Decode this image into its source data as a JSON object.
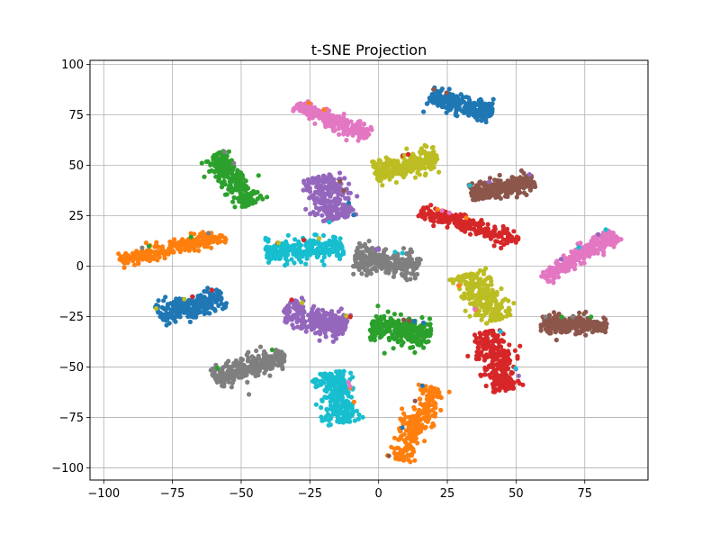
{
  "chart_data": {
    "type": "scatter",
    "title": "t-SNE Projection",
    "xlabel": "",
    "ylabel": "",
    "xlim": [
      -105,
      98
    ],
    "ylim": [
      -106,
      102
    ],
    "x_ticks": [
      -100,
      -75,
      -50,
      -25,
      0,
      25,
      50,
      75
    ],
    "y_ticks": [
      -100,
      -75,
      -50,
      -25,
      0,
      25,
      50,
      75,
      100
    ],
    "x_tick_labels": [
      "−100",
      "−75",
      "−50",
      "−25",
      "0",
      "25",
      "50",
      "75"
    ],
    "y_tick_labels": [
      "−100",
      "−75",
      "−50",
      "−25",
      "0",
      "25",
      "50",
      "75",
      "100"
    ],
    "grid": true,
    "legend": "none",
    "colors": {
      "blue": "#1f77b4",
      "orange": "#ff7f0e",
      "green": "#2ca02c",
      "red": "#d62728",
      "purple": "#9467bd",
      "brown": "#8c564b",
      "pink": "#e377c2",
      "gray": "#7f7f7f",
      "olive": "#bcbd22",
      "cyan": "#17becf"
    },
    "clusters": [
      {
        "color": "blue",
        "center": [
          30,
          80
        ],
        "axis": [
          1.0,
          -0.35
        ],
        "length": 24,
        "width": 7
      },
      {
        "color": "blue",
        "center": [
          -68,
          -20
        ],
        "axis": [
          1.0,
          0.45
        ],
        "length": 25,
        "width": 8
      },
      {
        "color": "pink",
        "center": [
          -17,
          72
        ],
        "axis": [
          1.0,
          -0.6
        ],
        "length": 30,
        "width": 6
      },
      {
        "color": "pink",
        "center": [
          73,
          5
        ],
        "axis": [
          1.0,
          0.9
        ],
        "length": 34,
        "width": 6
      },
      {
        "color": "green",
        "center": [
          -53,
          43
        ],
        "axis": [
          0.6,
          -1.0
        ],
        "length": 28,
        "width": 8
      },
      {
        "color": "green",
        "center": [
          8,
          -32
        ],
        "axis": [
          1.0,
          -0.2
        ],
        "length": 22,
        "width": 10
      },
      {
        "color": "olive",
        "center": [
          10,
          50
        ],
        "axis": [
          1.0,
          0.3
        ],
        "length": 24,
        "width": 9
      },
      {
        "color": "olive",
        "center": [
          38,
          -15
        ],
        "axis": [
          -0.5,
          1.0
        ],
        "length": 26,
        "width": 10
      },
      {
        "color": "brown",
        "center": [
          45,
          39
        ],
        "axis": [
          1.0,
          0.25
        ],
        "length": 24,
        "width": 7
      },
      {
        "color": "brown",
        "center": [
          71,
          -29
        ],
        "axis": [
          1.0,
          0.0
        ],
        "length": 24,
        "width": 7
      },
      {
        "color": "purple",
        "center": [
          -18,
          34
        ],
        "axis": [
          0.3,
          -1.0
        ],
        "length": 22,
        "width": 11
      },
      {
        "color": "purple",
        "center": [
          -23,
          -26
        ],
        "axis": [
          1.0,
          -0.4
        ],
        "length": 24,
        "width": 10
      },
      {
        "color": "red",
        "center": [
          33,
          20
        ],
        "axis": [
          1.0,
          -0.4
        ],
        "length": 38,
        "width": 6
      },
      {
        "color": "red",
        "center": [
          43,
          -47
        ],
        "axis": [
          0.3,
          -1.0
        ],
        "length": 30,
        "width": 10
      },
      {
        "color": "orange",
        "center": [
          -75,
          9
        ],
        "axis": [
          1.0,
          0.3
        ],
        "length": 40,
        "width": 6
      },
      {
        "color": "orange",
        "center": [
          14,
          -78
        ],
        "axis": [
          0.35,
          1.0
        ],
        "length": 38,
        "width": 8
      },
      {
        "color": "cyan",
        "center": [
          -27,
          8
        ],
        "axis": [
          1.0,
          0.15
        ],
        "length": 28,
        "width": 9
      },
      {
        "color": "cyan",
        "center": [
          -15,
          -65
        ],
        "axis": [
          0.2,
          -1.0
        ],
        "length": 26,
        "width": 10
      },
      {
        "color": "gray",
        "center": [
          3,
          2
        ],
        "axis": [
          1.0,
          -0.2
        ],
        "length": 24,
        "width": 10
      },
      {
        "color": "gray",
        "center": [
          -47,
          -50
        ],
        "axis": [
          1.0,
          0.45
        ],
        "length": 28,
        "width": 8
      }
    ]
  }
}
